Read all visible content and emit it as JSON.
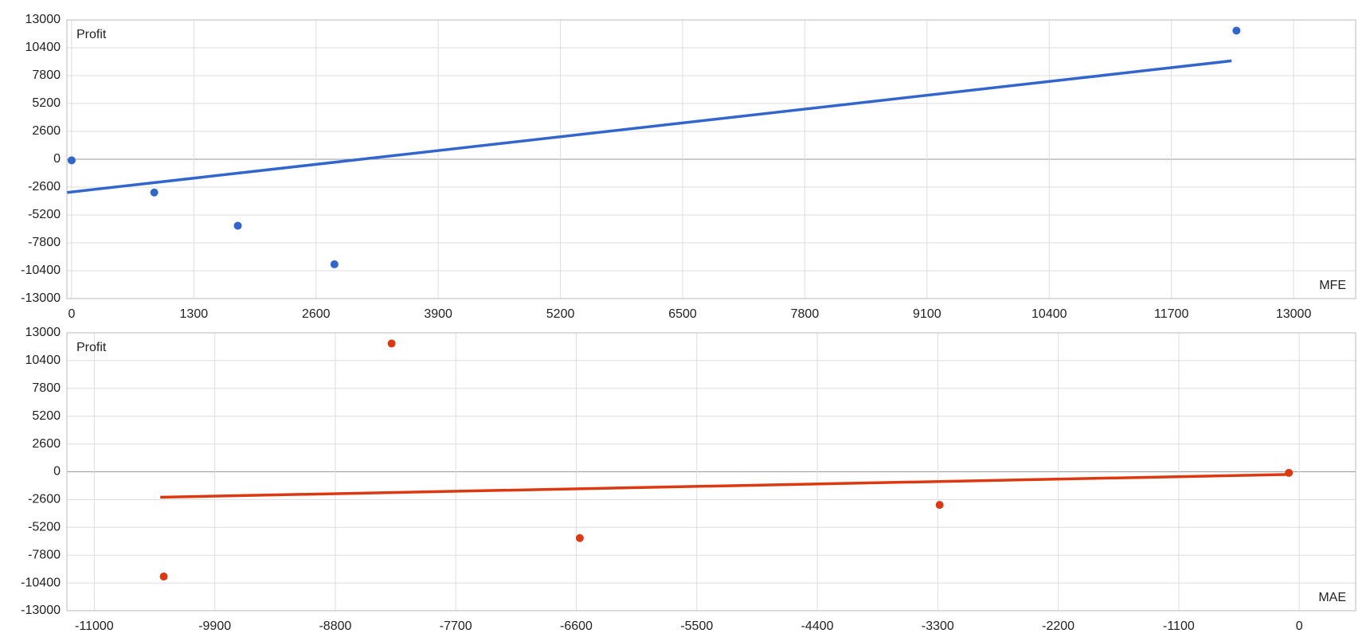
{
  "chart_data": [
    {
      "type": "scatter",
      "y_label": "Profit",
      "x_label": "MFE",
      "color": "#3366cc",
      "x": [
        0,
        879,
        1768,
        2796,
        12392
      ],
      "values": [
        -100,
        -3100,
        -6200,
        -9800,
        12000
      ],
      "trendline": {
        "x": [
          -47,
          12340
        ],
        "values": [
          -3100,
          9180
        ]
      },
      "xlim": [
        -50,
        13660
      ],
      "ylim": [
        -13000,
        13000
      ],
      "xticks": [
        0,
        1300,
        2600,
        3900,
        5200,
        6500,
        7800,
        9100,
        10400,
        11700,
        13000
      ],
      "yticks": [
        -13000,
        -10400,
        -7800,
        -5200,
        -2600,
        0,
        2600,
        5200,
        7800,
        10400,
        13000
      ],
      "grid": true
    },
    {
      "type": "scatter",
      "y_label": "Profit",
      "x_label": "MAE",
      "color": "#dc3912",
      "x": [
        -10366,
        -8286,
        -6568,
        -3283,
        -95
      ],
      "values": [
        -9800,
        12000,
        -6200,
        -3100,
        -100
      ],
      "trendline": {
        "x": [
          -10398,
          -95
        ],
        "values": [
          -2380,
          -250
        ]
      },
      "xlim": [
        -11250,
        515
      ],
      "ylim": [
        -13000,
        13000
      ],
      "xticks": [
        -11000,
        -9900,
        -8800,
        -7700,
        -6600,
        -5500,
        -4400,
        -3300,
        -2200,
        -1100,
        0
      ],
      "yticks": [
        -13000,
        -10400,
        -7800,
        -5200,
        -2600,
        0,
        2600,
        5200,
        7800,
        10400,
        13000
      ],
      "grid": true
    }
  ]
}
